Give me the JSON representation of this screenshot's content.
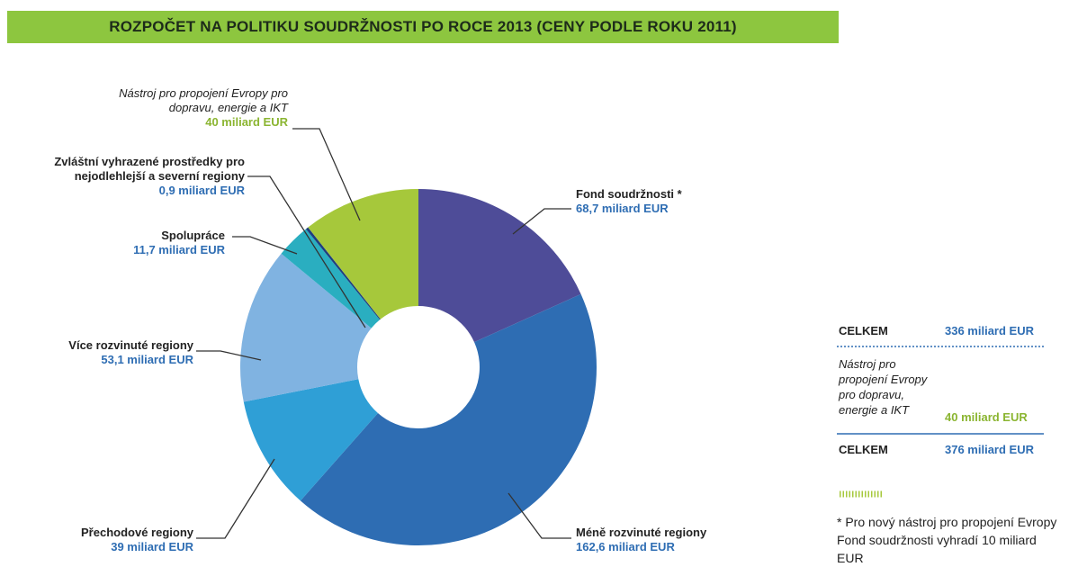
{
  "chart_data": {
    "type": "pie",
    "donut": true,
    "title": "ROZPOČET NA POLITIKU SOUDRŽNOSTI PO ROCE 2013 (CENY PODLE ROKU 2011)",
    "categories": [
      "Fond soudržnosti *",
      "Méně rozvinuté regiony",
      "Přechodové regiony",
      "Více rozvinuté regiony",
      "Spolupráce",
      "Zvláštní vyhrazené prostředky pro nejodlehlejší a severní regiony",
      "Nástroj pro propojení Evropy pro dopravu, energie a IKT"
    ],
    "values": [
      68.7,
      162.6,
      39,
      53.1,
      11.7,
      0.9,
      40
    ],
    "value_labels": [
      "68,7 miliard EUR",
      "162,6 miliard EUR",
      "39 miliard EUR",
      "53,1 miliard EUR",
      "11,7 miliard EUR",
      "0,9 miliard EUR",
      "40 miliard EUR"
    ],
    "colors": [
      "#4e4c98",
      "#2e6db3",
      "#2f9fd6",
      "#80b3e1",
      "#2aaec0",
      "#1f3f7f",
      "#a6c83b"
    ]
  },
  "summary": {
    "rows": [
      {
        "label": "CELKEM",
        "value": "336 miliard EUR"
      },
      {
        "label": "Nástroj pro propojení Evropy pro dopravu, energie a IKT",
        "value": "40 miliard EUR"
      },
      {
        "label": "CELKEM",
        "value": "376 miliard EUR"
      }
    ],
    "footnote": "* Pro nový nástroj pro propojení Evropy Fond soudržnosti vyhradí 10 miliard EUR"
  }
}
